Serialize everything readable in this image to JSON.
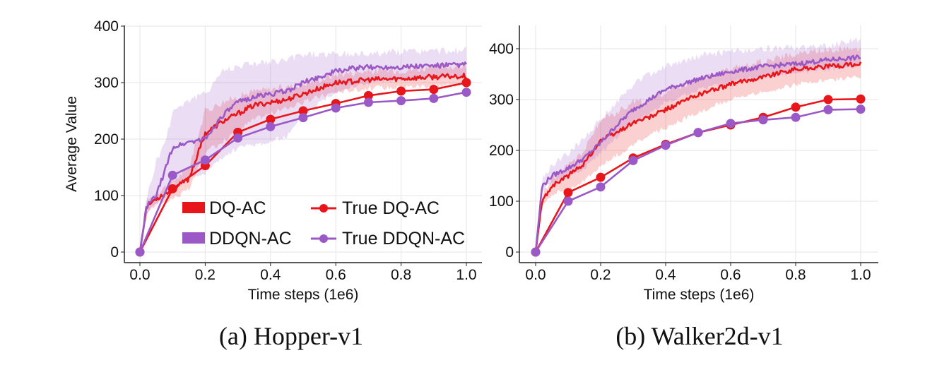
{
  "colors": {
    "dq_ac": "#e8151b",
    "ddqn_ac": "#9b59c7",
    "grid": "#e6e6e6",
    "axis": "#222222"
  },
  "legend": {
    "dq_ac": "DQ-AC",
    "ddqn_ac": "DDQN-AC",
    "true_dq_ac": "True DQ-AC",
    "true_ddqn_ac": "True DDQN-AC"
  },
  "captions": {
    "a": "(a) Hopper-v1",
    "b": "(b) Walker2d-v1"
  },
  "chart_data": [
    {
      "type": "line",
      "caption": "(a) Hopper-v1",
      "xlabel": "Time steps (1e6)",
      "ylabel": "Average Value",
      "xlim": [
        0,
        1.0
      ],
      "ylim": [
        0,
        400
      ],
      "xticks": [
        "0.0",
        "0.2",
        "0.4",
        "0.6",
        "0.8",
        "1.0"
      ],
      "yticks": [
        "0",
        "100",
        "200",
        "300",
        "400"
      ],
      "grid": true,
      "legend_position": "bottom-right",
      "series": [
        {
          "name": "DQ-AC",
          "kind": "mean-band",
          "x": [
            0,
            0.02,
            0.05,
            0.1,
            0.15,
            0.2,
            0.25,
            0.3,
            0.35,
            0.4,
            0.45,
            0.5,
            0.55,
            0.6,
            0.65,
            0.7,
            0.8,
            0.9,
            1.0
          ],
          "values": [
            0,
            80,
            95,
            110,
            130,
            210,
            230,
            245,
            260,
            265,
            270,
            280,
            290,
            300,
            302,
            305,
            307,
            310,
            312
          ],
          "band_low": [
            0,
            70,
            85,
            95,
            110,
            175,
            195,
            215,
            235,
            245,
            255,
            265,
            275,
            283,
            287,
            290,
            292,
            295,
            297
          ],
          "band_high": [
            0,
            90,
            105,
            125,
            150,
            250,
            265,
            275,
            285,
            288,
            292,
            298,
            305,
            315,
            318,
            320,
            322,
            327,
            330
          ]
        },
        {
          "name": "DDQN-AC",
          "kind": "mean-band",
          "x": [
            0,
            0.02,
            0.05,
            0.08,
            0.1,
            0.15,
            0.2,
            0.25,
            0.3,
            0.35,
            0.4,
            0.45,
            0.5,
            0.55,
            0.6,
            0.65,
            0.7,
            0.8,
            0.9,
            1.0
          ],
          "values": [
            0,
            80,
            100,
            150,
            185,
            195,
            200,
            240,
            265,
            275,
            280,
            285,
            300,
            310,
            320,
            325,
            327,
            328,
            330,
            332
          ],
          "band_low": [
            0,
            70,
            85,
            105,
            120,
            130,
            140,
            165,
            185,
            190,
            195,
            205,
            240,
            265,
            285,
            292,
            300,
            305,
            310,
            312
          ],
          "band_high": [
            0,
            95,
            160,
            200,
            250,
            270,
            280,
            320,
            330,
            335,
            335,
            340,
            350,
            350,
            350,
            350,
            352,
            355,
            356,
            357
          ]
        },
        {
          "name": "True DQ-AC",
          "kind": "markers",
          "x": [
            0,
            0.1,
            0.2,
            0.3,
            0.4,
            0.5,
            0.6,
            0.7,
            0.8,
            0.9,
            1.0
          ],
          "values": [
            0,
            112,
            153,
            212,
            235,
            250,
            263,
            277,
            285,
            288,
            300
          ]
        },
        {
          "name": "True DDQN-AC",
          "kind": "markers",
          "x": [
            0,
            0.1,
            0.2,
            0.3,
            0.4,
            0.5,
            0.6,
            0.7,
            0.8,
            0.9,
            1.0
          ],
          "values": [
            0,
            136,
            163,
            202,
            222,
            238,
            255,
            265,
            268,
            272,
            283
          ]
        }
      ]
    },
    {
      "type": "line",
      "caption": "(b) Walker2d-v1",
      "xlabel": "Time steps (1e6)",
      "ylabel": "",
      "xlim": [
        0,
        1.0
      ],
      "ylim": [
        0,
        400
      ],
      "xticks": [
        "0.0",
        "0.2",
        "0.4",
        "0.6",
        "0.8",
        "1.0"
      ],
      "yticks": [
        "0",
        "100",
        "200",
        "300",
        "400"
      ],
      "grid": true,
      "legend_position": "none",
      "series": [
        {
          "name": "DQ-AC",
          "kind": "mean-band",
          "x": [
            0,
            0.02,
            0.05,
            0.1,
            0.15,
            0.2,
            0.25,
            0.3,
            0.35,
            0.4,
            0.5,
            0.6,
            0.7,
            0.8,
            0.9,
            1.0
          ],
          "values": [
            0,
            100,
            130,
            150,
            175,
            220,
            235,
            255,
            265,
            280,
            310,
            330,
            345,
            360,
            365,
            370
          ],
          "band_low": [
            0,
            90,
            115,
            125,
            140,
            170,
            190,
            210,
            230,
            245,
            275,
            300,
            315,
            330,
            338,
            345
          ],
          "band_high": [
            0,
            110,
            145,
            170,
            200,
            260,
            275,
            295,
            300,
            315,
            340,
            360,
            375,
            390,
            398,
            402
          ]
        },
        {
          "name": "DDQN-AC",
          "kind": "mean-band",
          "x": [
            0,
            0.02,
            0.05,
            0.1,
            0.15,
            0.2,
            0.25,
            0.3,
            0.35,
            0.4,
            0.5,
            0.6,
            0.7,
            0.8,
            0.9,
            1.0
          ],
          "values": [
            0,
            130,
            150,
            165,
            185,
            215,
            250,
            280,
            300,
            320,
            340,
            355,
            365,
            370,
            378,
            383
          ],
          "band_low": [
            0,
            120,
            135,
            150,
            165,
            195,
            225,
            255,
            275,
            295,
            318,
            335,
            345,
            352,
            360,
            365
          ],
          "band_high": [
            0,
            145,
            170,
            195,
            225,
            260,
            295,
            330,
            350,
            365,
            385,
            395,
            400,
            402,
            405,
            420
          ]
        },
        {
          "name": "True DQ-AC",
          "kind": "markers",
          "x": [
            0,
            0.1,
            0.2,
            0.3,
            0.4,
            0.5,
            0.6,
            0.7,
            0.8,
            0.9,
            1.0
          ],
          "values": [
            0,
            117,
            147,
            185,
            212,
            235,
            250,
            265,
            285,
            300,
            301
          ]
        },
        {
          "name": "True DDQN-AC",
          "kind": "markers",
          "x": [
            0,
            0.1,
            0.2,
            0.3,
            0.4,
            0.5,
            0.6,
            0.7,
            0.8,
            0.9,
            1.0
          ],
          "values": [
            0,
            100,
            128,
            180,
            210,
            235,
            253,
            260,
            265,
            280,
            281
          ]
        }
      ]
    }
  ]
}
